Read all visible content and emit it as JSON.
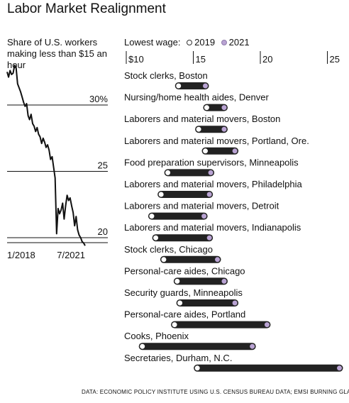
{
  "title": "Labor Market Realignment",
  "source": "DATA: ECONOMIC POLICY INSTITUTE USING U.S. CENSUS BUREAU DATA; EMSI BURNING GLASS",
  "colors": {
    "line": "#111111",
    "bar": "#222222",
    "dot_2019": "#ffffff",
    "dot_2021": "#b9a3d3",
    "grid": "#111111"
  },
  "chart_data": [
    {
      "type": "line",
      "title": "Share of U.S. workers making less than $15 an hour",
      "x_tick_labels": [
        "1/2018",
        "7/2021"
      ],
      "y_tick_labels": [
        "30%",
        "25",
        "20"
      ],
      "y_ticks": [
        30,
        25,
        20
      ],
      "ylim": [
        19.3,
        33.5
      ],
      "x_start": "1/2018",
      "x_end": "9/2021",
      "values": [
        32.5,
        32.1,
        32.6,
        32.3,
        32.4,
        33.0,
        32.8,
        31.6,
        31.3,
        31.0,
        30.6,
        30.2,
        29.9,
        30.1,
        29.2,
        28.9,
        29.3,
        28.6,
        28.4,
        28.0,
        28.3,
        27.8,
        27.6,
        27.1,
        27.5,
        27.2,
        26.8,
        27.0,
        26.6,
        25.9,
        26.1,
        25.3,
        24.5,
        20.3,
        22.2,
        21.8,
        22.1,
        22.6,
        21.4,
        22.4,
        23.2,
        22.8,
        23.0,
        22.4,
        21.9,
        20.9,
        21.6,
        20.6,
        20.2,
        20.0,
        19.7,
        19.6,
        19.4
      ]
    },
    {
      "type": "dumbbell",
      "title": "Lowest wage",
      "legend_label": "Lowest wage:",
      "series": [
        {
          "name": "2019"
        },
        {
          "name": "2021"
        }
      ],
      "x_ticks": [
        10,
        15,
        20,
        25
      ],
      "x_tick_labels": [
        "$10",
        "15",
        "20",
        "25"
      ],
      "xlim": [
        10,
        26.3
      ],
      "rows": [
        {
          "label": "Stock clerks, Boston",
          "v2019": 13.9,
          "v2021": 15.9
        },
        {
          "label": "Nursing/home health aides, Denver",
          "v2019": 16.0,
          "v2021": 17.3
        },
        {
          "label": "Laborers and material movers, Boston",
          "v2019": 15.4,
          "v2021": 17.3
        },
        {
          "label": "Laborers and material movers, Portland, Ore.",
          "v2019": 15.9,
          "v2021": 18.1
        },
        {
          "label": "Food preparation supervisors, Minneapolis",
          "v2019": 13.1,
          "v2021": 16.3
        },
        {
          "label": "Laborers and material movers, Philadelphia",
          "v2019": 12.6,
          "v2021": 16.2
        },
        {
          "label": "Laborers and material movers, Detroit",
          "v2019": 11.9,
          "v2021": 15.8
        },
        {
          "label": "Laborers and material movers, Indianapolis",
          "v2019": 12.2,
          "v2021": 16.2
        },
        {
          "label": "Stock clerks, Chicago",
          "v2019": 12.8,
          "v2021": 16.8
        },
        {
          "label": "Personal-care aides, Chicago",
          "v2019": 13.8,
          "v2021": 17.3
        },
        {
          "label": "Security guards, Minneapolis",
          "v2019": 14.0,
          "v2021": 18.1
        },
        {
          "label": "Personal-care aides, Portland",
          "v2019": 13.6,
          "v2021": 20.5
        },
        {
          "label": "Cooks, Phoenix",
          "v2019": 11.2,
          "v2021": 19.4
        },
        {
          "label": "Secretaries, Durham, N.C.",
          "v2019": 15.3,
          "v2021": 25.9
        }
      ]
    }
  ]
}
